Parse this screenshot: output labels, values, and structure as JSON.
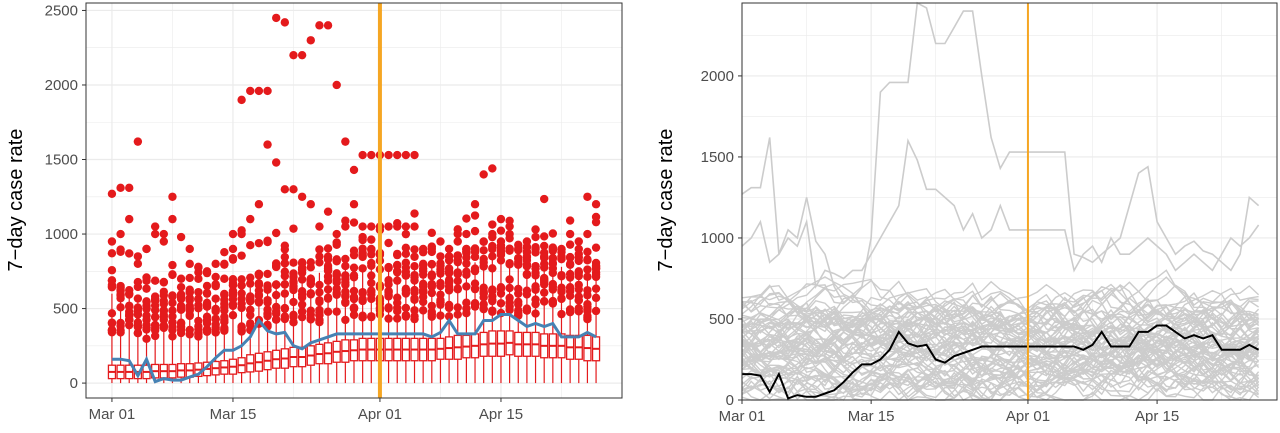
{
  "colors": {
    "points": "#e41a1c",
    "boxes": "#e41a1c",
    "median_line_left": "#4682b4",
    "median_line_right": "#000000",
    "reference_line": "#f5a623",
    "spaghetti": "#cccccc",
    "grid": "#ebebeb",
    "panel_border": "#333333"
  },
  "chart_data": [
    {
      "type": "box",
      "title": "",
      "xlabel": "",
      "ylabel": "7−day case rate",
      "x_ticks": [
        "Mar 01",
        "Mar 15",
        "Apr 01",
        "Apr 15"
      ],
      "x_tick_day": [
        0,
        14,
        31,
        45
      ],
      "y_ticks": [
        "0",
        "500",
        "1000",
        "1500",
        "2000",
        "2500"
      ],
      "xlim_day": [
        -3,
        59
      ],
      "ylim": [
        -100,
        2550
      ],
      "grid": true,
      "reference_line_day": 31,
      "series": [
        {
          "median_by_day": [
            160,
            160,
            150,
            50,
            160,
            10,
            30,
            20,
            20,
            40,
            60,
            110,
            170,
            220,
            220,
            250,
            310,
            420,
            350,
            330,
            340,
            250,
            230,
            270,
            290,
            310,
            330,
            330,
            330,
            330,
            330,
            330,
            330,
            330,
            330,
            330,
            330,
            310,
            340,
            420,
            330,
            330,
            330,
            420,
            420,
            460,
            460,
            420,
            380,
            400,
            380,
            400,
            310,
            310,
            310,
            340,
            310
          ],
          "box_q1_by_day": [
            30,
            30,
            30,
            30,
            30,
            35,
            35,
            35,
            40,
            40,
            45,
            50,
            55,
            60,
            60,
            70,
            75,
            80,
            90,
            100,
            100,
            110,
            110,
            120,
            130,
            130,
            140,
            140,
            150,
            150,
            150,
            150,
            150,
            150,
            150,
            150,
            150,
            150,
            160,
            160,
            160,
            170,
            170,
            180,
            180,
            180,
            190,
            180,
            180,
            180,
            170,
            170,
            170,
            160,
            160,
            150,
            150
          ],
          "box_q3_by_day": [
            120,
            120,
            120,
            120,
            120,
            125,
            125,
            125,
            130,
            130,
            135,
            140,
            145,
            150,
            160,
            170,
            190,
            200,
            210,
            220,
            230,
            240,
            240,
            250,
            260,
            270,
            280,
            290,
            290,
            300,
            300,
            300,
            300,
            300,
            300,
            300,
            300,
            300,
            300,
            310,
            320,
            320,
            330,
            340,
            350,
            350,
            350,
            340,
            340,
            340,
            330,
            330,
            330,
            320,
            320,
            320,
            310
          ],
          "whisker_max_by_day": [
            600,
            600,
            580,
            560,
            540,
            540,
            540,
            540,
            540,
            550,
            560,
            570,
            580,
            600,
            610,
            620,
            640,
            660,
            680,
            690,
            700,
            710,
            720,
            730,
            740,
            750,
            760,
            770,
            780,
            780,
            780,
            780,
            780,
            780,
            780,
            780,
            780,
            780,
            780,
            790,
            800,
            800,
            810,
            820,
            830,
            830,
            820,
            820,
            810,
            800,
            800,
            790,
            780,
            780,
            770,
            770,
            760
          ]
        }
      ]
    },
    {
      "type": "line",
      "title": "",
      "xlabel": "",
      "ylabel": "7−day case rate",
      "x_ticks": [
        "Mar 01",
        "Mar 15",
        "Apr 01",
        "Apr 15"
      ],
      "x_tick_day": [
        0,
        14,
        31,
        45
      ],
      "y_ticks": [
        "0",
        "500",
        "1000",
        "1500",
        "2000"
      ],
      "xlim_day": [
        0,
        58
      ],
      "ylim": [
        0,
        2450
      ],
      "grid": true,
      "reference_line_day": 31,
      "highlight_series": {
        "values": [
          160,
          160,
          150,
          50,
          160,
          10,
          30,
          20,
          20,
          40,
          60,
          110,
          170,
          220,
          220,
          250,
          310,
          420,
          350,
          330,
          340,
          250,
          230,
          270,
          290,
          310,
          330,
          330,
          330,
          330,
          330,
          330,
          330,
          330,
          330,
          330,
          330,
          310,
          340,
          420,
          330,
          330,
          330,
          420,
          420,
          460,
          460,
          420,
          380,
          400,
          380,
          400,
          310,
          310,
          310,
          340,
          310
        ]
      },
      "notable_series": [
        [
          1270,
          1310,
          1310,
          1620,
          900,
          1050,
          1000,
          1250,
          980,
          900,
          700,
          600,
          650,
          700,
          1000,
          1900,
          1960,
          1960,
          1960,
          2450,
          2420,
          2200,
          2200,
          2300,
          2400,
          2400,
          2000,
          1620,
          1430,
          1530,
          1530,
          1530,
          1530,
          1530,
          1530,
          1530,
          900,
          880,
          850,
          900,
          950,
          1000,
          1200,
          1400,
          1440,
          1100,
          1000,
          900,
          950,
          980,
          920,
          900,
          850,
          800,
          900,
          1250,
          1200
        ],
        [
          950,
          1000,
          1100,
          850,
          900,
          1000,
          950,
          1100,
          700,
          800,
          780,
          750,
          800,
          800,
          900,
          1000,
          1100,
          1200,
          1600,
          1480,
          1300,
          1300,
          1250,
          1200,
          1050,
          1150,
          1000,
          1050,
          1200,
          1050,
          1050,
          1050,
          1050,
          1050,
          1050,
          1050,
          800,
          900,
          950,
          850,
          1000,
          900,
          900,
          950,
          1000,
          950,
          900,
          800,
          850,
          900,
          850,
          800,
          900,
          1000,
          950,
          1000,
          1080
        ]
      ]
    }
  ]
}
